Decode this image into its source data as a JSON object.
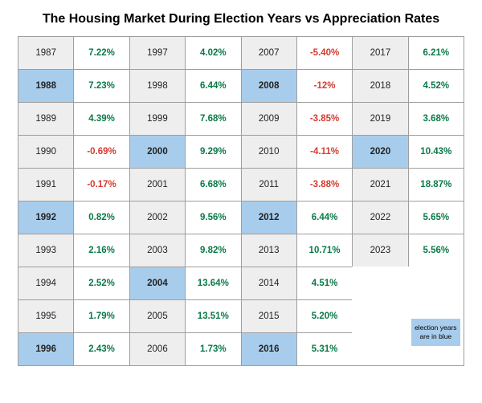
{
  "title": "The Housing Market During Election Years vs Appreciation Rates",
  "colors": {
    "border": "#9e9e9e",
    "year_bg_normal": "#eeeeee",
    "year_bg_election": "#a8cdec",
    "rate_bg": "#ffffff",
    "rate_pos": "#0a7a47",
    "rate_neg": "#d63a2f",
    "year_text": "#222222",
    "title_text": "#000000"
  },
  "legend": {
    "text": "election years are in blue",
    "bg": "#a8cdec"
  },
  "columns": [
    [
      {
        "year": "1987",
        "rate": "7.22%",
        "neg": false,
        "election": false
      },
      {
        "year": "1988",
        "rate": "7.23%",
        "neg": false,
        "election": true
      },
      {
        "year": "1989",
        "rate": "4.39%",
        "neg": false,
        "election": false
      },
      {
        "year": "1990",
        "rate": "-0.69%",
        "neg": true,
        "election": false
      },
      {
        "year": "1991",
        "rate": "-0.17%",
        "neg": true,
        "election": false
      },
      {
        "year": "1992",
        "rate": "0.82%",
        "neg": false,
        "election": true
      },
      {
        "year": "1993",
        "rate": "2.16%",
        "neg": false,
        "election": false
      },
      {
        "year": "1994",
        "rate": "2.52%",
        "neg": false,
        "election": false
      },
      {
        "year": "1995",
        "rate": "1.79%",
        "neg": false,
        "election": false
      },
      {
        "year": "1996",
        "rate": "2.43%",
        "neg": false,
        "election": true
      }
    ],
    [
      {
        "year": "1997",
        "rate": "4.02%",
        "neg": false,
        "election": false
      },
      {
        "year": "1998",
        "rate": "6.44%",
        "neg": false,
        "election": false
      },
      {
        "year": "1999",
        "rate": "7.68%",
        "neg": false,
        "election": false
      },
      {
        "year": "2000",
        "rate": "9.29%",
        "neg": false,
        "election": true
      },
      {
        "year": "2001",
        "rate": "6.68%",
        "neg": false,
        "election": false
      },
      {
        "year": "2002",
        "rate": "9.56%",
        "neg": false,
        "election": false
      },
      {
        "year": "2003",
        "rate": "9.82%",
        "neg": false,
        "election": false
      },
      {
        "year": "2004",
        "rate": "13.64%",
        "neg": false,
        "election": true
      },
      {
        "year": "2005",
        "rate": "13.51%",
        "neg": false,
        "election": false
      },
      {
        "year": "2006",
        "rate": "1.73%",
        "neg": false,
        "election": false
      }
    ],
    [
      {
        "year": "2007",
        "rate": "-5.40%",
        "neg": true,
        "election": false
      },
      {
        "year": "2008",
        "rate": "-12%",
        "neg": true,
        "election": true
      },
      {
        "year": "2009",
        "rate": "-3.85%",
        "neg": true,
        "election": false
      },
      {
        "year": "2010",
        "rate": "-4.11%",
        "neg": true,
        "election": false
      },
      {
        "year": "2011",
        "rate": "-3.88%",
        "neg": true,
        "election": false
      },
      {
        "year": "2012",
        "rate": "6.44%",
        "neg": false,
        "election": true
      },
      {
        "year": "2013",
        "rate": "10.71%",
        "neg": false,
        "election": false
      },
      {
        "year": "2014",
        "rate": "4.51%",
        "neg": false,
        "election": false
      },
      {
        "year": "2015",
        "rate": "5.20%",
        "neg": false,
        "election": false
      },
      {
        "year": "2016",
        "rate": "5.31%",
        "neg": false,
        "election": true
      }
    ],
    [
      {
        "year": "2017",
        "rate": "6.21%",
        "neg": false,
        "election": false
      },
      {
        "year": "2018",
        "rate": "4.52%",
        "neg": false,
        "election": false
      },
      {
        "year": "2019",
        "rate": "3.68%",
        "neg": false,
        "election": false
      },
      {
        "year": "2020",
        "rate": "10.43%",
        "neg": false,
        "election": true
      },
      {
        "year": "2021",
        "rate": "18.87%",
        "neg": false,
        "election": false
      },
      {
        "year": "2022",
        "rate": "5.65%",
        "neg": false,
        "election": false
      },
      {
        "year": "2023",
        "rate": "5.56%",
        "neg": false,
        "election": false
      }
    ]
  ]
}
